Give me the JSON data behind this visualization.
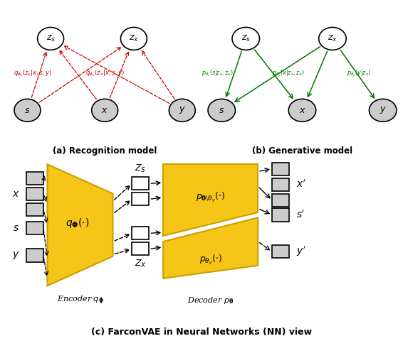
{
  "fig_width": 5.66,
  "fig_height": 4.8,
  "dpi": 100,
  "bg_color": "#ffffff",
  "red": "#cc0000",
  "green": "#007700",
  "gold": "#F5C518",
  "gold_edge": "#C8A000",
  "gray": "#cccccc",
  "subtitle_a": "(a) Recognition model",
  "subtitle_b": "(b) Generative model",
  "subtitle_c": "(c) FarconVAE in Neural Networks (NN) view"
}
